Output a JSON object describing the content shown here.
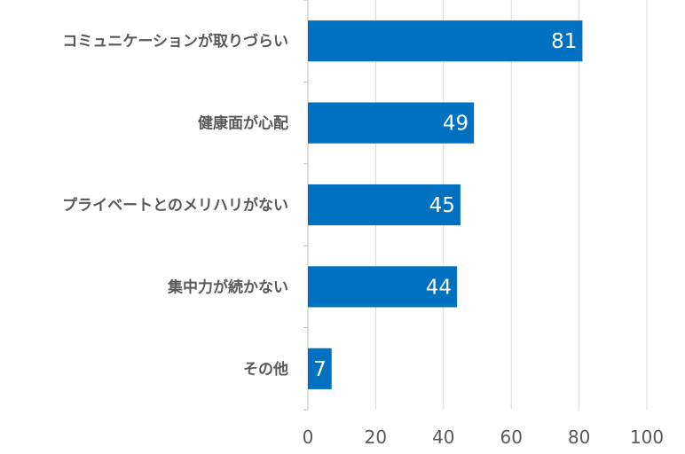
{
  "chart_data": {
    "type": "bar",
    "orientation": "horizontal",
    "categories": [
      "コミュニケーションが取りづらい",
      "健康面が心配",
      "プライベートとのメリハリがない",
      "集中力が続かない",
      "その他"
    ],
    "values": [
      81,
      49,
      45,
      44,
      7
    ],
    "data_labels": [
      "81",
      "49",
      "45",
      "44",
      "7"
    ],
    "xlim": [
      0,
      100
    ],
    "x_ticks": [
      0,
      20,
      40,
      60,
      80,
      100
    ],
    "x_tick_labels": [
      "0",
      "20",
      "40",
      "60",
      "80",
      "100"
    ],
    "grid": "vertical",
    "legend": "none",
    "colors": {
      "bar": "#0070C0",
      "grid": "#D9D9D9",
      "axis": "#BFBFBF",
      "text": "#595959"
    }
  }
}
